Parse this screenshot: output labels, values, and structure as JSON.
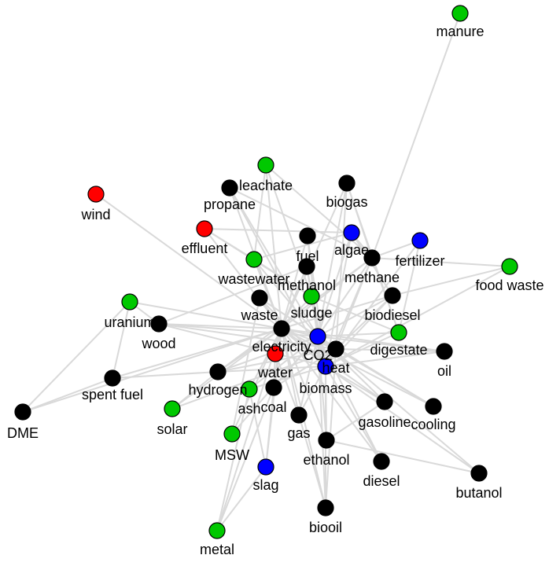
{
  "colors": {
    "black": "#000000",
    "green": "#00c800",
    "blue": "#0000ff",
    "red": "#ff0000",
    "edge": "#d9d9d9"
  },
  "nodes": [
    {
      "id": "manure",
      "label": "manure",
      "color": "green"
    },
    {
      "id": "leachate",
      "label": "leachate",
      "color": "green"
    },
    {
      "id": "propane",
      "label": "propane",
      "color": "black"
    },
    {
      "id": "biogas",
      "label": "biogas",
      "color": "black"
    },
    {
      "id": "wind",
      "label": "wind",
      "color": "red"
    },
    {
      "id": "effluent",
      "label": "effluent",
      "color": "red"
    },
    {
      "id": "fuel",
      "label": "fuel",
      "color": "black"
    },
    {
      "id": "algae",
      "label": "algae",
      "color": "blue"
    },
    {
      "id": "fertilizer",
      "label": "fertilizer",
      "color": "blue"
    },
    {
      "id": "wastewater",
      "label": "wastewater",
      "color": "green"
    },
    {
      "id": "methanol",
      "label": "methanol",
      "color": "black"
    },
    {
      "id": "methane",
      "label": "methane",
      "color": "black"
    },
    {
      "id": "food_waste",
      "label": "food waste",
      "color": "green"
    },
    {
      "id": "uranium",
      "label": "uranium",
      "color": "green"
    },
    {
      "id": "waste",
      "label": "waste",
      "color": "black"
    },
    {
      "id": "sludge",
      "label": "sludge",
      "color": "green"
    },
    {
      "id": "biodiesel",
      "label": "biodiesel",
      "color": "black"
    },
    {
      "id": "wood",
      "label": "wood",
      "color": "black"
    },
    {
      "id": "electricity",
      "label": "electricity",
      "color": "black"
    },
    {
      "id": "digestate",
      "label": "digestate",
      "color": "green"
    },
    {
      "id": "co2",
      "label": "CO2",
      "color": "blue"
    },
    {
      "id": "water",
      "label": "water",
      "color": "red"
    },
    {
      "id": "heat",
      "label": "heat",
      "color": "black"
    },
    {
      "id": "oil",
      "label": "oil",
      "color": "black"
    },
    {
      "id": "biomass",
      "label": "biomass",
      "color": "blue"
    },
    {
      "id": "spent_fuel",
      "label": "spent fuel",
      "color": "black"
    },
    {
      "id": "hydrogen",
      "label": "hydrogen",
      "color": "black"
    },
    {
      "id": "ash",
      "label": "ash",
      "color": "green"
    },
    {
      "id": "coal",
      "label": "coal",
      "color": "black"
    },
    {
      "id": "gasoline",
      "label": "gasoline",
      "color": "black"
    },
    {
      "id": "cooling",
      "label": "cooling",
      "color": "black"
    },
    {
      "id": "DME",
      "label": "DME",
      "color": "black"
    },
    {
      "id": "solar",
      "label": "solar",
      "color": "green"
    },
    {
      "id": "gas",
      "label": "gas",
      "color": "black"
    },
    {
      "id": "ethanol",
      "label": "ethanol",
      "color": "black"
    },
    {
      "id": "MSW",
      "label": "MSW",
      "color": "green"
    },
    {
      "id": "diesel",
      "label": "diesel",
      "color": "black"
    },
    {
      "id": "butanol",
      "label": "butanol",
      "color": "black"
    },
    {
      "id": "slag",
      "label": "slag",
      "color": "blue"
    },
    {
      "id": "biooil",
      "label": "biooil",
      "color": "black"
    },
    {
      "id": "metal",
      "label": "metal",
      "color": "green"
    }
  ],
  "edges": [
    [
      "manure",
      "methane"
    ],
    [
      "wind",
      "electricity"
    ],
    [
      "food_waste",
      "biodiesel"
    ],
    [
      "food_waste",
      "methane"
    ],
    [
      "food_waste",
      "biomass"
    ],
    [
      "fertilizer",
      "methane"
    ],
    [
      "fertilizer",
      "digestate"
    ],
    [
      "fertilizer",
      "biomass"
    ],
    [
      "DME",
      "spent_fuel"
    ],
    [
      "DME",
      "uranium"
    ],
    [
      "DME",
      "electricity"
    ],
    [
      "spent_fuel",
      "uranium"
    ],
    [
      "spent_fuel",
      "electricity"
    ],
    [
      "spent_fuel",
      "hydrogen"
    ],
    [
      "uranium",
      "wood"
    ],
    [
      "uranium",
      "electricity"
    ],
    [
      "wood",
      "electricity"
    ],
    [
      "wood",
      "heat"
    ],
    [
      "wood",
      "co2"
    ],
    [
      "wood",
      "biomass"
    ],
    [
      "wood",
      "methanol"
    ],
    [
      "solar",
      "electricity"
    ],
    [
      "solar",
      "hydrogen"
    ],
    [
      "solar",
      "heat"
    ],
    [
      "MSW",
      "electricity"
    ],
    [
      "MSW",
      "waste"
    ],
    [
      "MSW",
      "co2"
    ],
    [
      "metal",
      "slag"
    ],
    [
      "metal",
      "ash"
    ],
    [
      "metal",
      "coal"
    ],
    [
      "metal",
      "electricity"
    ],
    [
      "slag",
      "coal"
    ],
    [
      "slag",
      "ash"
    ],
    [
      "slag",
      "electricity"
    ],
    [
      "biooil",
      "biomass"
    ],
    [
      "biooil",
      "co2"
    ],
    [
      "biooil",
      "heat"
    ],
    [
      "biooil",
      "gas"
    ],
    [
      "biooil",
      "electricity"
    ],
    [
      "butanol",
      "biomass"
    ],
    [
      "butanol",
      "ethanol"
    ],
    [
      "butanol",
      "co2"
    ],
    [
      "diesel",
      "biomass"
    ],
    [
      "diesel",
      "co2"
    ],
    [
      "diesel",
      "electricity"
    ],
    [
      "ethanol",
      "biomass"
    ],
    [
      "ethanol",
      "co2"
    ],
    [
      "ethanol",
      "electricity"
    ],
    [
      "ethanol",
      "gasoline"
    ],
    [
      "gasoline",
      "biomass"
    ],
    [
      "gasoline",
      "co2"
    ],
    [
      "gasoline",
      "electricity"
    ],
    [
      "cooling",
      "heat"
    ],
    [
      "cooling",
      "electricity"
    ],
    [
      "cooling",
      "co2"
    ],
    [
      "oil",
      "co2"
    ],
    [
      "oil",
      "biomass"
    ],
    [
      "oil",
      "electricity"
    ],
    [
      "oil",
      "heat"
    ],
    [
      "gas",
      "co2"
    ],
    [
      "gas",
      "electricity"
    ],
    [
      "gas",
      "biomass"
    ],
    [
      "gas",
      "water"
    ],
    [
      "coal",
      "electricity"
    ],
    [
      "coal",
      "co2"
    ],
    [
      "coal",
      "heat"
    ],
    [
      "coal",
      "water"
    ],
    [
      "ash",
      "electricity"
    ],
    [
      "ash",
      "co2"
    ],
    [
      "ash",
      "biomass"
    ],
    [
      "hydrogen",
      "electricity"
    ],
    [
      "hydrogen",
      "co2"
    ],
    [
      "hydrogen",
      "biomass"
    ],
    [
      "hydrogen",
      "methane"
    ],
    [
      "hydrogen",
      "heat"
    ],
    [
      "leachate",
      "wastewater"
    ],
    [
      "leachate",
      "methane"
    ],
    [
      "leachate",
      "electricity"
    ],
    [
      "leachate",
      "sludge"
    ],
    [
      "propane",
      "biomass"
    ],
    [
      "propane",
      "methane"
    ],
    [
      "propane",
      "electricity"
    ],
    [
      "propane",
      "co2"
    ],
    [
      "biogas",
      "methane"
    ],
    [
      "biogas",
      "electricity"
    ],
    [
      "biogas",
      "digestate"
    ],
    [
      "biogas",
      "co2"
    ],
    [
      "biogas",
      "heat"
    ],
    [
      "effluent",
      "wastewater"
    ],
    [
      "effluent",
      "sludge"
    ],
    [
      "effluent",
      "electricity"
    ],
    [
      "effluent",
      "algae"
    ],
    [
      "fuel",
      "biomass"
    ],
    [
      "fuel",
      "electricity"
    ],
    [
      "fuel",
      "co2"
    ],
    [
      "algae",
      "biodiesel"
    ],
    [
      "algae",
      "co2"
    ],
    [
      "algae",
      "biomass"
    ],
    [
      "algae",
      "methane"
    ],
    [
      "wastewater",
      "sludge"
    ],
    [
      "wastewater",
      "electricity"
    ],
    [
      "wastewater",
      "co2"
    ],
    [
      "wastewater",
      "algae"
    ],
    [
      "methanol",
      "biomass"
    ],
    [
      "methanol",
      "electricity"
    ],
    [
      "methanol",
      "co2"
    ],
    [
      "methane",
      "electricity"
    ],
    [
      "methane",
      "co2"
    ],
    [
      "methane",
      "biomass"
    ],
    [
      "methane",
      "heat"
    ],
    [
      "methane",
      "digestate"
    ],
    [
      "waste",
      "electricity"
    ],
    [
      "waste",
      "heat"
    ],
    [
      "waste",
      "co2"
    ],
    [
      "waste",
      "biomass"
    ],
    [
      "sludge",
      "electricity"
    ],
    [
      "sludge",
      "co2"
    ],
    [
      "sludge",
      "digestate"
    ],
    [
      "biodiesel",
      "electricity"
    ],
    [
      "biodiesel",
      "co2"
    ],
    [
      "biodiesel",
      "heat"
    ],
    [
      "biodiesel",
      "biomass"
    ],
    [
      "electricity",
      "co2"
    ],
    [
      "electricity",
      "heat"
    ],
    [
      "electricity",
      "biomass"
    ],
    [
      "electricity",
      "water"
    ],
    [
      "digestate",
      "co2"
    ],
    [
      "digestate",
      "biomass"
    ],
    [
      "co2",
      "heat"
    ],
    [
      "co2",
      "biomass"
    ],
    [
      "heat",
      "biomass"
    ],
    [
      "water",
      "co2"
    ]
  ]
}
